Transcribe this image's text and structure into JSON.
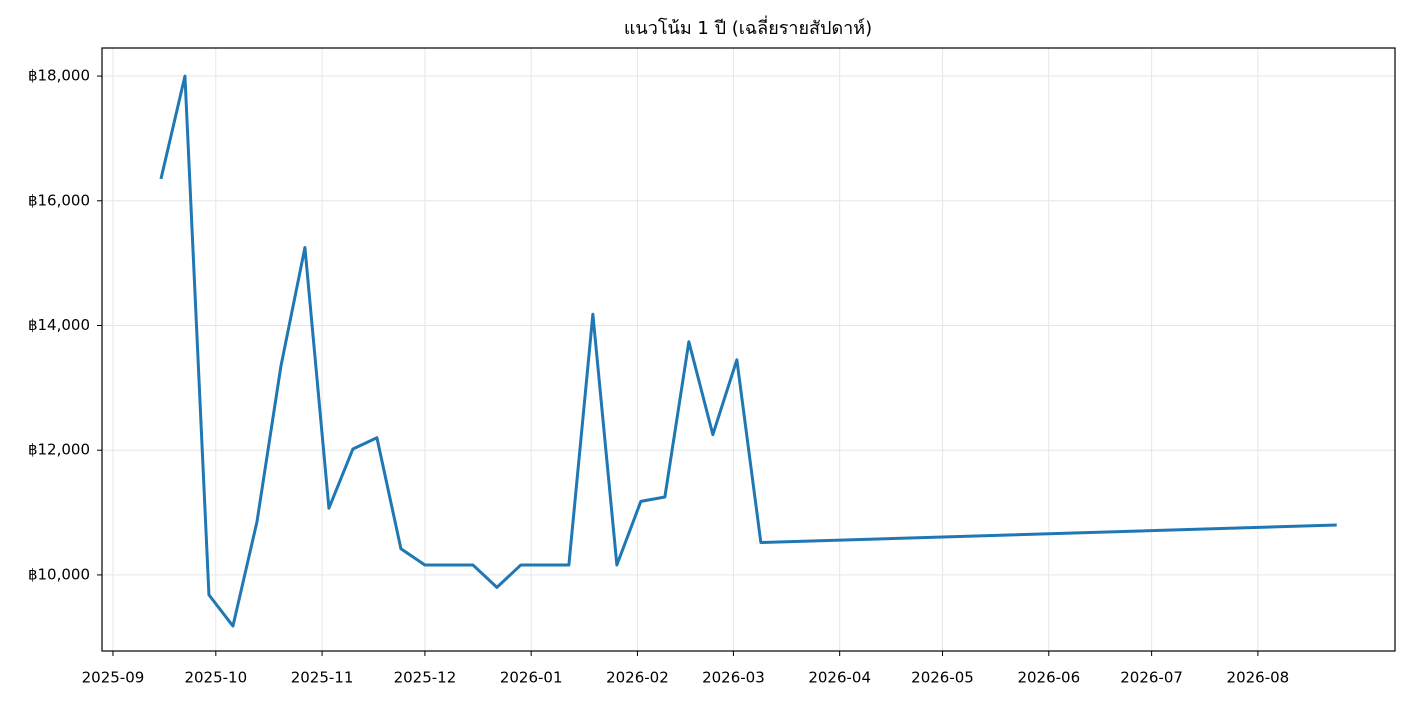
{
  "chart_data": {
    "type": "line",
    "title": "แนวโน้ม 1 ปี (เฉลี่ยรายสัปดาห์)",
    "x": [
      14,
      21,
      28,
      35,
      42,
      49,
      56,
      63,
      70,
      77,
      84,
      91,
      98,
      105,
      112,
      119,
      126,
      133,
      140,
      147,
      154,
      161,
      168,
      175,
      182,
      189,
      357
    ],
    "series": [
      {
        "color": "#1f77b4",
        "values": [
          16350,
          18000,
          9680,
          9180,
          10850,
          13350,
          15250,
          11070,
          12020,
          12200,
          10420,
          10160,
          10160,
          10160,
          9800,
          10160,
          10160,
          10160,
          14180,
          10160,
          11180,
          11250,
          13740,
          12250,
          13450,
          10520,
          10800
        ]
      }
    ],
    "xlim": [
      -3.2,
      374
    ],
    "xticks": [
      {
        "value": 0,
        "label": "2025-09"
      },
      {
        "value": 30,
        "label": "2025-10"
      },
      {
        "value": 61,
        "label": "2025-11"
      },
      {
        "value": 91,
        "label": "2025-12"
      },
      {
        "value": 122,
        "label": "2026-01"
      },
      {
        "value": 153,
        "label": "2026-02"
      },
      {
        "value": 181,
        "label": "2026-03"
      },
      {
        "value": 212,
        "label": "2026-04"
      },
      {
        "value": 242,
        "label": "2026-05"
      },
      {
        "value": 273,
        "label": "2026-06"
      },
      {
        "value": 303,
        "label": "2026-07"
      },
      {
        "value": 334,
        "label": "2026-08"
      }
    ],
    "ylim": [
      8780,
      18450
    ],
    "yticks": [
      {
        "value": 10000,
        "label": "฿10,000"
      },
      {
        "value": 12000,
        "label": "฿12,000"
      },
      {
        "value": 14000,
        "label": "฿14,000"
      },
      {
        "value": 16000,
        "label": "฿16,000"
      },
      {
        "value": 18000,
        "label": "฿18,000"
      }
    ],
    "grid": true
  }
}
